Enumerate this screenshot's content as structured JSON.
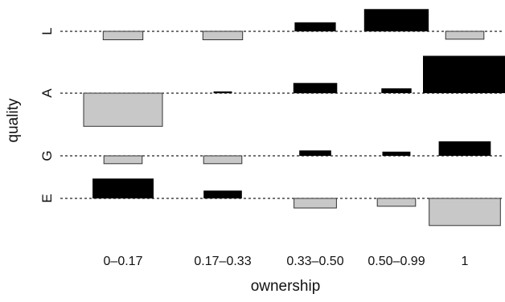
{
  "chart_data": {
    "type": "bar",
    "title": "",
    "xlabel": "ownership",
    "ylabel": "quality",
    "categories": [
      "0–0.17",
      "0.17–0.33",
      "0.33–0.50",
      "0.50–0.99",
      "1"
    ],
    "rows": [
      "L",
      "A",
      "G",
      "E"
    ],
    "values": {
      "L": [
        -0.14,
        -0.14,
        0.15,
        0.37,
        -0.13
      ],
      "A": [
        -0.55,
        0.03,
        0.17,
        0.08,
        0.62
      ],
      "G": [
        -0.13,
        -0.13,
        0.09,
        0.07,
        0.24
      ],
      "E": [
        0.33,
        0.13,
        -0.16,
        -0.13,
        -0.45
      ]
    },
    "colors": {
      "positive": "#000000",
      "negative": "#c8c8c8",
      "negative_border": "#333333",
      "baseline": "#222222"
    },
    "grid": false,
    "legend": "none"
  }
}
